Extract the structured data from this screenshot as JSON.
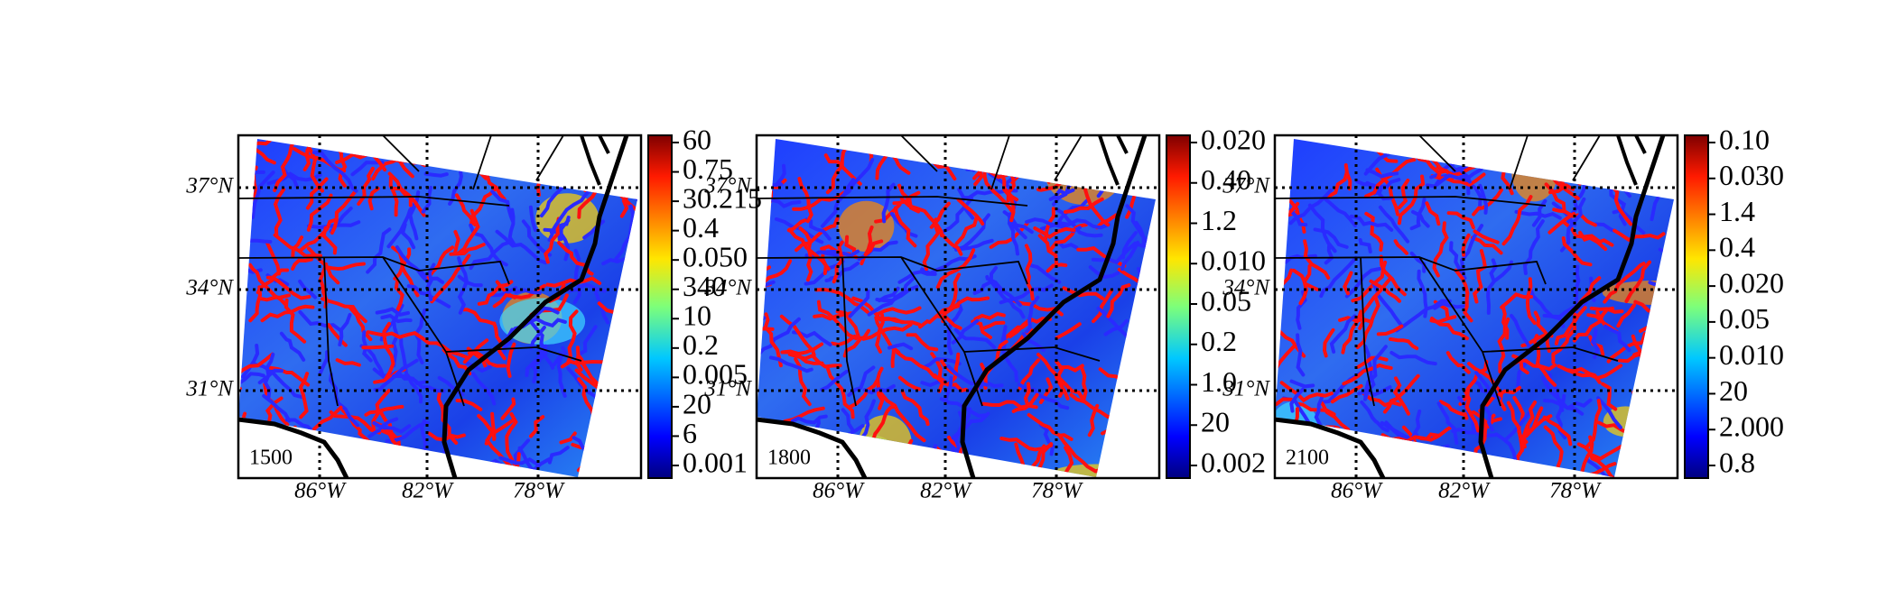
{
  "panels": [
    {
      "label": "1500",
      "lat_labels": [
        "37°N",
        "34°N",
        "31°N"
      ],
      "lon_labels": [
        "86°W",
        "82°W",
        "78°W"
      ],
      "colorbar_labels": [
        "60",
        "0.75",
        "30.215",
        "0.4",
        "0.050",
        "340",
        "10",
        "0.2",
        "0.005",
        "20",
        "6",
        "0.001"
      ]
    },
    {
      "label": "1800",
      "lat_labels": [
        "37°N",
        "34°N",
        "31°N"
      ],
      "lon_labels": [
        "86°W",
        "82°W",
        "78°W"
      ],
      "colorbar_labels": [
        "0.020",
        "0.40",
        "1.2",
        "0.010",
        "0.05",
        "0.2",
        "1.0",
        "20",
        "0.002"
      ]
    },
    {
      "label": "2100",
      "lat_labels": [
        "37°N",
        "34°N",
        "31°N"
      ],
      "lon_labels": [
        "86°W",
        "82°W",
        "78°W"
      ],
      "colorbar_labels": [
        "0.10",
        "0.030",
        "1.4",
        "0.4",
        "0.020",
        "0.05",
        "0.010",
        "20",
        "2.000",
        "0.8"
      ]
    }
  ]
}
